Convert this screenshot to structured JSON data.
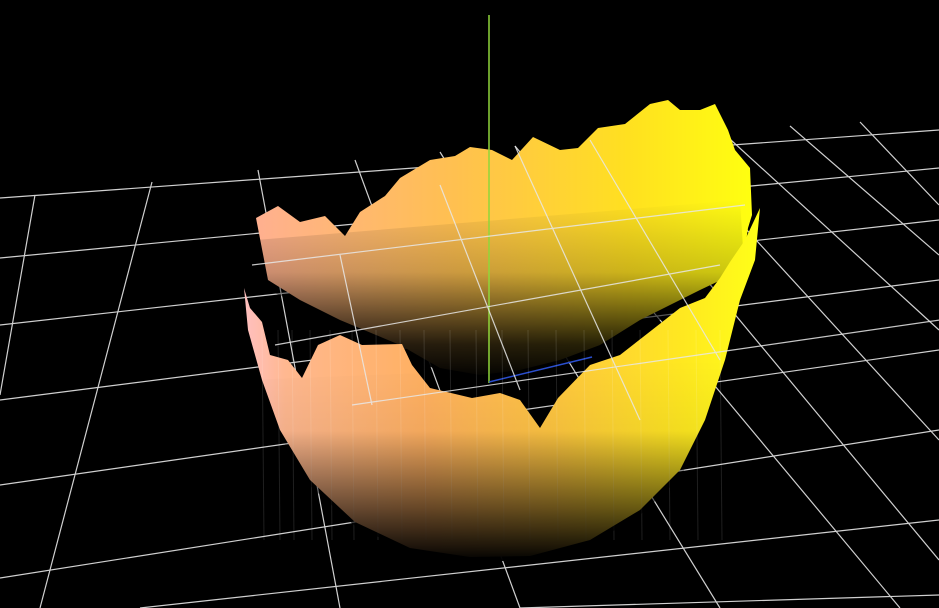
{
  "scene": {
    "background_color": "#000000",
    "grid_color": "#d8d8d8",
    "axis_y_color": "#8fd63a",
    "axis_z_color": "#2a4fd0",
    "surface_colors": {
      "pink": "#ffc6c6",
      "peach": "#ffb070",
      "orange": "#ffc24a",
      "yellow": "#ffff1a",
      "base": "#000000"
    }
  }
}
